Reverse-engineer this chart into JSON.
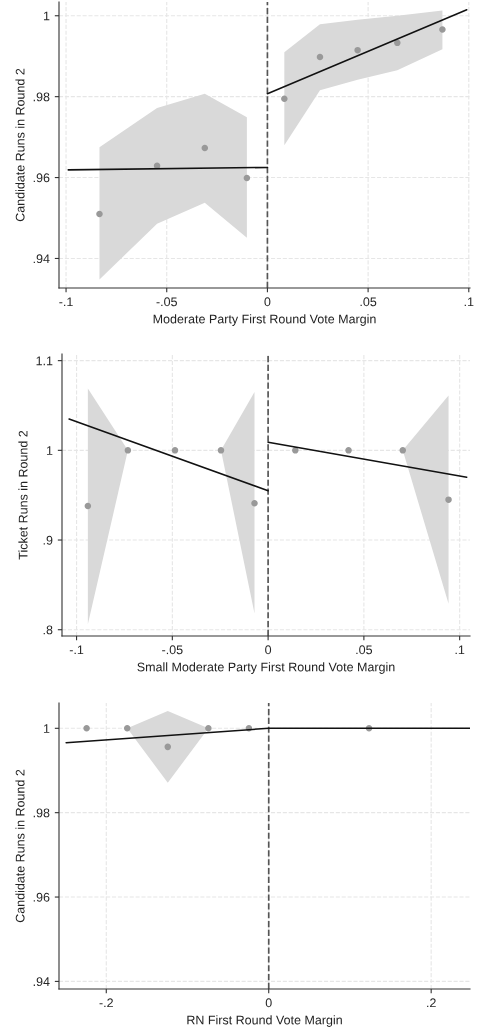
{
  "chart_data": [
    {
      "type": "scatter",
      "xlabel": "Moderate Party First Round Vote Margin",
      "ylabel": "Candidate Runs in Round 2",
      "xlim": [
        -0.1035,
        0.1006
      ],
      "ylim": [
        0.9327,
        1.0034
      ],
      "xticks": [
        {
          "value": -0.1,
          "label": "-.1"
        },
        {
          "value": -0.05,
          "label": "-.05"
        },
        0,
        {
          "value": 0.05,
          "label": ".05"
        },
        {
          "value": 0.1,
          "label": ".1"
        }
      ],
      "yticks": [
        {
          "value": 0.94,
          "label": ".94"
        },
        {
          "value": 0.96,
          "label": ".96"
        },
        {
          "value": 0.98,
          "label": ".98"
        },
        1
      ],
      "grid": true,
      "marker": "circle",
      "ref_lines": [
        {
          "axis": "x",
          "value": 0,
          "line_style": "dashed",
          "color": "#555555"
        }
      ],
      "series": [
        {
          "color": "#999999",
          "x": [
            -0.0834,
            -0.0548,
            -0.0311,
            -0.0102
          ],
          "values": [
            0.951,
            0.9629,
            0.9673,
            0.9599
          ],
          "lower": [
            0.9348,
            0.9486,
            0.9538,
            0.9451
          ],
          "upper": [
            0.9675,
            0.9772,
            0.9807,
            0.9749
          ]
        },
        {
          "color": "#999999",
          "x": [
            0.0084,
            0.0261,
            0.0448,
            0.0645,
            0.0869
          ],
          "values": [
            0.9795,
            0.9898,
            0.9915,
            0.9933,
            0.9966
          ],
          "lower": [
            0.968,
            0.9816,
            0.9842,
            0.9865,
            0.9917
          ],
          "upper": [
            0.991,
            0.9979,
            0.999,
            1.0,
            1.0013
          ]
        },
        {
          "type": "line",
          "color": "#111111",
          "line_style": "solid",
          "marker": "none",
          "x": [
            -0.0989,
            0
          ],
          "values": [
            0.9619,
            0.9625
          ]
        },
        {
          "type": "line",
          "color": "#111111",
          "line_style": "solid",
          "marker": "none",
          "x": [
            0,
            0.099
          ],
          "values": [
            0.9807,
            1.0015
          ]
        }
      ]
    },
    {
      "type": "scatter",
      "xlabel": "Small Moderate Party First Round Vote Margin",
      "ylabel": "Ticket Runs in Round 2",
      "xlim": [
        -0.1076,
        0.1054
      ],
      "ylim": [
        0.793,
        1.1074
      ],
      "xticks": [
        {
          "value": -0.1,
          "label": "-.1"
        },
        {
          "value": -0.05,
          "label": "-.05"
        },
        0,
        {
          "value": 0.05,
          "label": ".05"
        },
        {
          "value": 0.1,
          "label": ".1"
        }
      ],
      "yticks": [
        {
          "value": 0.8,
          "label": ".8"
        },
        {
          "value": 0.9,
          "label": ".9"
        },
        1,
        1.1
      ],
      "grid": true,
      "marker": "circle",
      "ref_lines": [
        {
          "axis": "x",
          "value": 0,
          "line_style": "dashed",
          "color": "#555555"
        }
      ],
      "series": [
        {
          "color": "#999999",
          "x": [
            -0.0941,
            -0.0732,
            -0.0486,
            -0.0246,
            -0.0071
          ],
          "values": [
            0.938,
            1,
            1,
            1,
            0.941
          ],
          "lower": [
            0.806,
            1,
            1,
            1,
            0.818
          ],
          "upper": [
            1.069,
            1,
            1,
            1,
            1.065
          ]
        },
        {
          "color": "#999999",
          "x": [
            0.0142,
            0.042,
            0.0703,
            0.0942
          ],
          "values": [
            1,
            1,
            1,
            0.945
          ],
          "lower": [
            1,
            1,
            1,
            0.829
          ],
          "upper": [
            1,
            1,
            1,
            1.061
          ]
        },
        {
          "type": "line",
          "color": "#111111",
          "line_style": "solid",
          "marker": "none",
          "x": [
            -0.1039,
            0
          ],
          "values": [
            1.035,
            0.955
          ]
        },
        {
          "type": "line",
          "color": "#111111",
          "line_style": "solid",
          "marker": "none",
          "x": [
            0,
            0.1037
          ],
          "values": [
            1.009,
            0.97
          ]
        }
      ]
    },
    {
      "type": "scatter",
      "xlabel": "RN First Round Vote Margin",
      "ylabel": "Candidate Runs in Round 2",
      "xlim": [
        -0.2582,
        0.2478
      ],
      "ylim": [
        0.9382,
        1.006
      ],
      "xticks": [
        {
          "value": -0.2,
          "label": "-.2"
        },
        0,
        {
          "value": 0.2,
          "label": ".2"
        }
      ],
      "yticks": [
        {
          "value": 0.94,
          "label": ".94"
        },
        {
          "value": 0.96,
          "label": ".96"
        },
        {
          "value": 0.98,
          "label": ".98"
        },
        1
      ],
      "grid": true,
      "marker": "circle",
      "ref_lines": [
        {
          "axis": "x",
          "value": 0,
          "line_style": "dashed",
          "color": "#555555"
        }
      ],
      "series": [
        {
          "color": "#999999",
          "x": [
            -0.2242,
            -0.1742,
            -0.1243,
            -0.0743,
            -0.0244
          ],
          "values": [
            1,
            1,
            0.9956,
            1,
            1
          ],
          "lower": [
            1,
            1,
            0.9871,
            1,
            1
          ],
          "upper": [
            1,
            1,
            1.0041,
            1,
            1
          ]
        },
        {
          "color": "#999999",
          "x": [
            0.1235
          ],
          "values": [
            1
          ]
        },
        {
          "type": "line",
          "color": "#111111",
          "line_style": "solid",
          "marker": "none",
          "x": [
            -0.2494,
            0,
            0.2478
          ],
          "values": [
            0.9966,
            1,
            1
          ]
        }
      ]
    }
  ]
}
